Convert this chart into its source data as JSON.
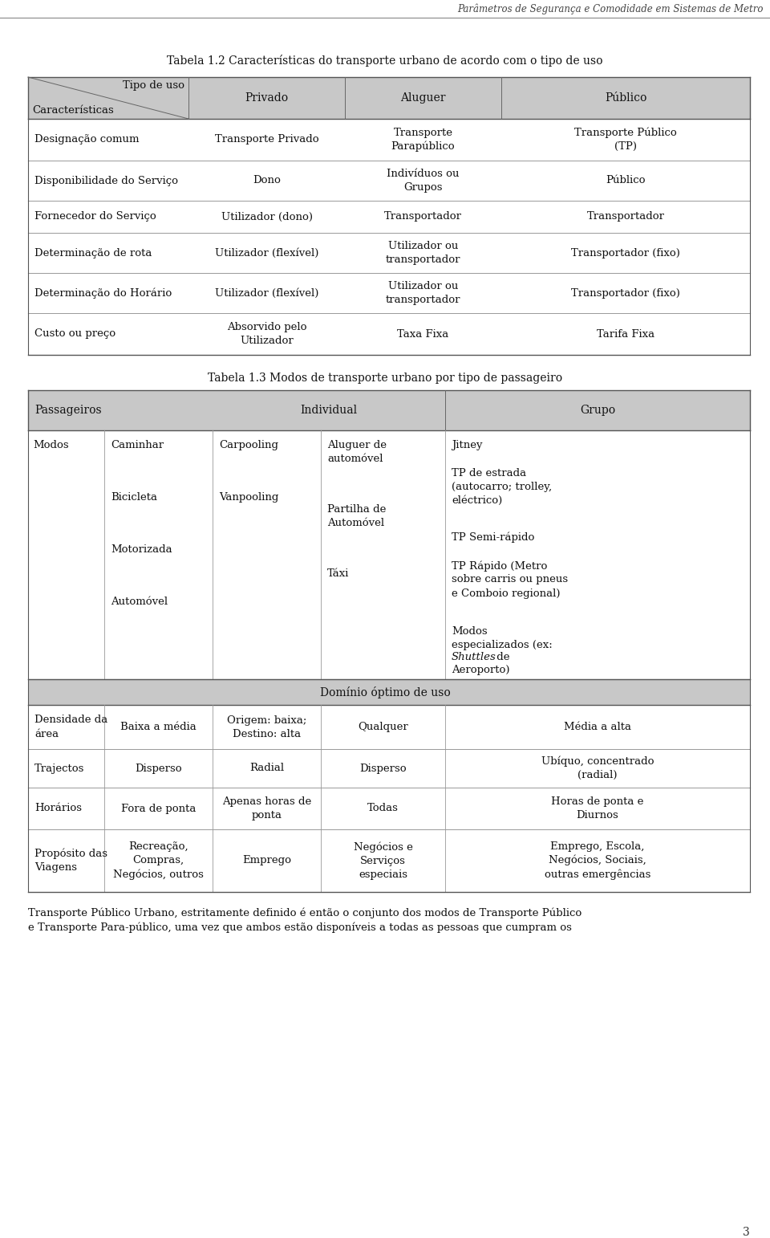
{
  "header_italic": "Parâmetros de Segurança e Comodidade em Sistemas de Metro",
  "page_number": "3",
  "table1_title": "Tabela 1.2 Características do transporte urbano de acordo com o tipo de uso",
  "table1_rows": [
    [
      "Designação comum",
      "Transporte Privado",
      "Transporte\nParapúblico",
      "Transporte Público\n(TP)"
    ],
    [
      "Disponibilidade do Serviço",
      "Dono",
      "Indivíduos ou\nGrupos",
      "Público"
    ],
    [
      "Fornecedor do Serviço",
      "Utilizador (dono)",
      "Transportador",
      "Transportador"
    ],
    [
      "Determinação de rota",
      "Utilizador (flexível)",
      "Utilizador ou\ntransportador",
      "Transportador (fixo)"
    ],
    [
      "Determinação do Horário",
      "Utilizador (flexível)",
      "Utilizador ou\ntransportador",
      "Transportador (fixo)"
    ],
    [
      "Custo ou preço",
      "Absorvido pelo\nUtilizador",
      "Taxa Fixa",
      "Tarifa Fixa"
    ]
  ],
  "table2_title": "Tabela 1.3 Modos de transporte urbano por tipo de passageiro",
  "table2_domain_rows": [
    [
      "Densidade da\nárea",
      "Baixa a média",
      "Origem: baixa;\nDestino: alta",
      "Qualquer",
      "Média a alta"
    ],
    [
      "Trajectos",
      "Disperso",
      "Radial",
      "Disperso",
      "Ubíquo, concentrado\n(radial)"
    ],
    [
      "Horários",
      "Fora de ponta",
      "Apenas horas de\nponta",
      "Todas",
      "Horas de ponta e\nDiurnos"
    ],
    [
      "Propósito das\nViagens",
      "Recreação,\nCompras,\nNegócios, outros",
      "Emprego",
      "Negócios e\nServiços\nespeciais",
      "Emprego, Escola,\nNegócios, Sociais,\noutras emergências"
    ]
  ],
  "footer_text": "Transporte Público Urbano, estritamente definido é então o conjunto dos modos de Transporte Público\ne Transporte Para-público, uma vez que ambos estão disponíveis a todas as pessoas que cumpram os",
  "bg_color": "#ffffff",
  "header_bg": "#c8c8c8",
  "text_color": "#1a1a1a"
}
